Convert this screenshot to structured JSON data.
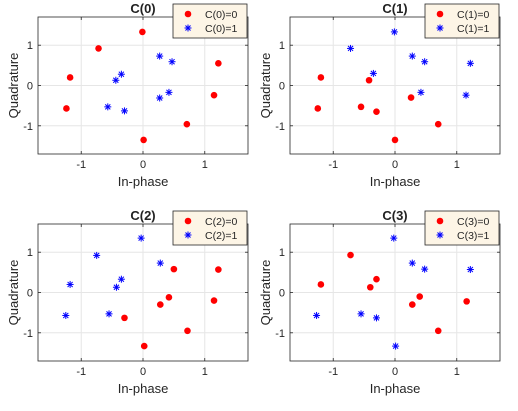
{
  "colors": {
    "c0": "#ff0000",
    "c1": "#0000ff",
    "grid": "#e6e6e6",
    "axis": "#262626",
    "legend_bg": "#fdf5e6"
  },
  "chart_data": [
    {
      "type": "scatter",
      "title": "C(0)",
      "xlabel": "In-phase",
      "ylabel": "Quadrature",
      "xlim": [
        -1.7,
        1.7
      ],
      "ylim": [
        -1.7,
        1.7
      ],
      "xticks": [
        -1,
        0,
        1
      ],
      "yticks": [
        -1,
        0,
        1
      ],
      "grid": true,
      "legend_position": "top-right",
      "series": [
        {
          "name": "C(0)=0",
          "marker": "dot",
          "color": "#ff0000",
          "points": [
            [
              -0.72,
              0.92
            ],
            [
              -0.01,
              1.33
            ],
            [
              -1.18,
              0.2
            ],
            [
              1.22,
              0.55
            ],
            [
              -1.24,
              -0.57
            ],
            [
              1.15,
              -0.24
            ],
            [
              0.71,
              -0.96
            ],
            [
              0.01,
              -1.35
            ]
          ]
        },
        {
          "name": "C(0)=1",
          "marker": "star",
          "color": "#0000ff",
          "points": [
            [
              0.27,
              0.73
            ],
            [
              0.47,
              0.59
            ],
            [
              -0.35,
              0.28
            ],
            [
              -0.44,
              0.13
            ],
            [
              -0.57,
              -0.53
            ],
            [
              -0.3,
              -0.63
            ],
            [
              0.42,
              -0.17
            ],
            [
              0.27,
              -0.31
            ]
          ]
        }
      ]
    },
    {
      "type": "scatter",
      "title": "C(1)",
      "xlabel": "In-phase",
      "ylabel": "Quadrature",
      "xlim": [
        -1.7,
        1.7
      ],
      "ylim": [
        -1.7,
        1.7
      ],
      "xticks": [
        -1,
        0,
        1
      ],
      "yticks": [
        -1,
        0,
        1
      ],
      "grid": true,
      "legend_position": "top-right",
      "series": [
        {
          "name": "C(1)=0",
          "marker": "dot",
          "color": "#ff0000",
          "points": [
            [
              -1.2,
              0.2
            ],
            [
              -0.42,
              0.13
            ],
            [
              -0.55,
              -0.53
            ],
            [
              -0.3,
              -0.65
            ],
            [
              0.26,
              -0.3
            ],
            [
              0.7,
              -0.96
            ],
            [
              0.0,
              -1.35
            ],
            [
              -1.25,
              -0.57
            ]
          ]
        },
        {
          "name": "C(1)=1",
          "marker": "star",
          "color": "#0000ff",
          "points": [
            [
              -0.72,
              0.92
            ],
            [
              -0.01,
              1.33
            ],
            [
              0.28,
              0.73
            ],
            [
              0.48,
              0.59
            ],
            [
              1.22,
              0.55
            ],
            [
              -0.35,
              0.3
            ],
            [
              0.42,
              -0.17
            ],
            [
              1.15,
              -0.24
            ]
          ]
        }
      ]
    },
    {
      "type": "scatter",
      "title": "C(2)",
      "xlabel": "In-phase",
      "ylabel": "Quadrature",
      "xlim": [
        -1.7,
        1.7
      ],
      "ylim": [
        -1.7,
        1.7
      ],
      "xticks": [
        -1,
        0,
        1
      ],
      "yticks": [
        -1,
        0,
        1
      ],
      "grid": true,
      "legend_position": "top-right",
      "series": [
        {
          "name": "C(2)=0",
          "marker": "dot",
          "color": "#ff0000",
          "points": [
            [
              0.5,
              0.58
            ],
            [
              1.22,
              0.57
            ],
            [
              0.42,
              -0.12
            ],
            [
              0.28,
              -0.3
            ],
            [
              1.15,
              -0.2
            ],
            [
              -0.3,
              -0.63
            ],
            [
              0.72,
              -0.95
            ],
            [
              0.02,
              -1.33
            ]
          ]
        },
        {
          "name": "C(2)=1",
          "marker": "star",
          "color": "#0000ff",
          "points": [
            [
              -0.75,
              0.92
            ],
            [
              -0.03,
              1.35
            ],
            [
              0.28,
              0.73
            ],
            [
              -1.18,
              0.2
            ],
            [
              -0.35,
              0.33
            ],
            [
              -0.43,
              0.13
            ],
            [
              -1.25,
              -0.57
            ],
            [
              -0.55,
              -0.53
            ]
          ]
        }
      ]
    },
    {
      "type": "scatter",
      "title": "C(3)",
      "xlabel": "In-phase",
      "ylabel": "Quadrature",
      "xlim": [
        -1.7,
        1.7
      ],
      "ylim": [
        -1.7,
        1.7
      ],
      "xticks": [
        -1,
        0,
        1
      ],
      "yticks": [
        -1,
        0,
        1
      ],
      "grid": true,
      "legend_position": "top-right",
      "series": [
        {
          "name": "C(3)=0",
          "marker": "dot",
          "color": "#ff0000",
          "points": [
            [
              -0.72,
              0.93
            ],
            [
              -1.2,
              0.2
            ],
            [
              -0.3,
              0.33
            ],
            [
              -0.4,
              0.13
            ],
            [
              0.4,
              -0.1
            ],
            [
              0.28,
              -0.3
            ],
            [
              1.16,
              -0.22
            ],
            [
              0.7,
              -0.95
            ]
          ]
        },
        {
          "name": "C(3)=1",
          "marker": "star",
          "color": "#0000ff",
          "points": [
            [
              -0.02,
              1.35
            ],
            [
              0.28,
              0.73
            ],
            [
              0.48,
              0.58
            ],
            [
              1.22,
              0.57
            ],
            [
              -1.27,
              -0.57
            ],
            [
              -0.55,
              -0.53
            ],
            [
              -0.3,
              -0.63
            ],
            [
              0.01,
              -1.33
            ]
          ]
        }
      ]
    }
  ]
}
